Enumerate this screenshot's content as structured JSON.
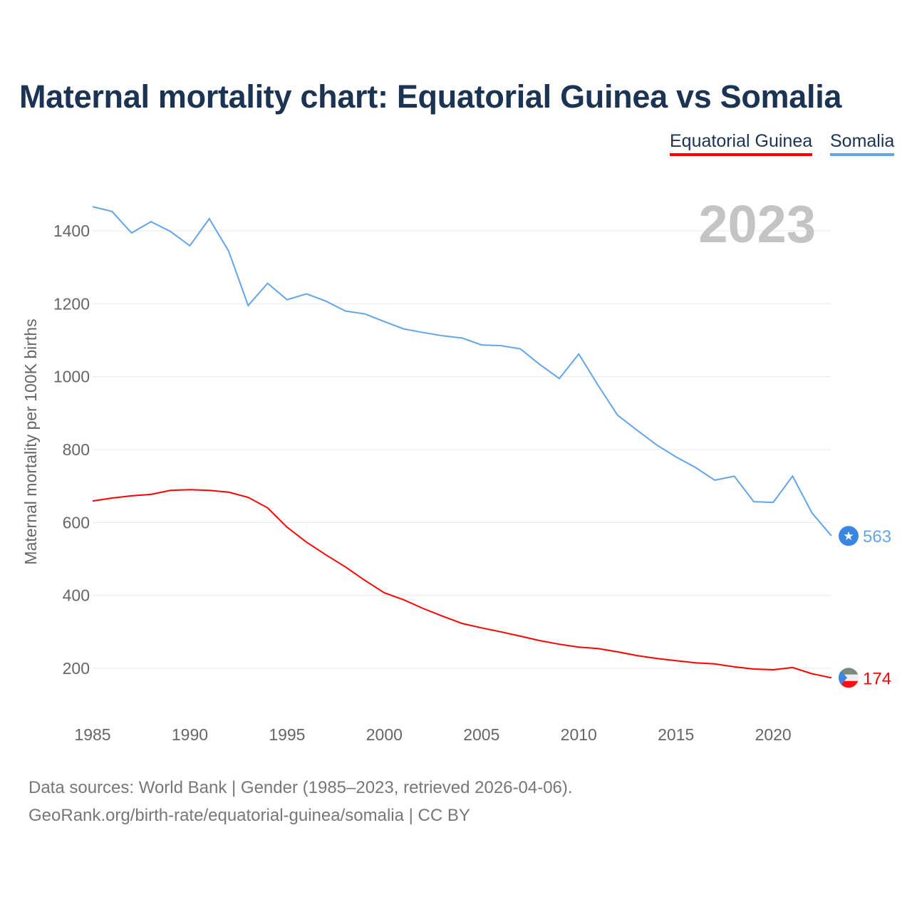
{
  "title": "Maternal mortality chart: Equatorial Guinea vs Somalia",
  "year_label": "2023",
  "footer": {
    "line1": "Data sources: World Bank | Gender (1985–2023, retrieved 2026-04-06).",
    "line2": "GeoRank.org/birth-rate/equatorial-guinea/somalia | CC BY"
  },
  "chart_data": {
    "type": "line",
    "title": "Maternal mortality chart: Equatorial Guinea vs Somalia",
    "xlabel": "",
    "ylabel": "Maternal mortality per 100K births",
    "xlim": [
      1985,
      2023
    ],
    "ylim": [
      100,
      1500
    ],
    "grid": true,
    "legend": "top-right",
    "x_ticks": [
      1985,
      1990,
      1995,
      2000,
      2005,
      2010,
      2015,
      2020
    ],
    "y_ticks": [
      200,
      400,
      600,
      800,
      1000,
      1200,
      1400
    ],
    "x": [
      1985,
      1986,
      1987,
      1988,
      1989,
      1990,
      1991,
      1992,
      1993,
      1994,
      1995,
      1996,
      1997,
      1998,
      1999,
      2000,
      2001,
      2002,
      2003,
      2004,
      2005,
      2006,
      2007,
      2008,
      2009,
      2010,
      2011,
      2012,
      2013,
      2014,
      2015,
      2016,
      2017,
      2018,
      2019,
      2020,
      2021,
      2022,
      2023
    ],
    "series": [
      {
        "name": "Equatorial Guinea",
        "color": "#ff0000",
        "end_label": "174",
        "flag": "equatorial-guinea-flag",
        "values": [
          659,
          667,
          673,
          677,
          688,
          690,
          688,
          683,
          669,
          640,
          587,
          546,
          511,
          478,
          441,
          407,
          388,
          364,
          343,
          323,
          311,
          300,
          288,
          276,
          266,
          258,
          254,
          245,
          235,
          227,
          221,
          215,
          212,
          204,
          198,
          196,
          202,
          185,
          174
        ]
      },
      {
        "name": "Somalia",
        "color": "#63a5ea",
        "end_label": "563",
        "flag": "somalia-flag",
        "values": [
          1466,
          1453,
          1394,
          1425,
          1398,
          1359,
          1433,
          1344,
          1195,
          1256,
          1211,
          1227,
          1207,
          1180,
          1172,
          1151,
          1131,
          1121,
          1112,
          1106,
          1087,
          1085,
          1076,
          1033,
          995,
          1062,
          976,
          894,
          853,
          813,
          780,
          751,
          716,
          727,
          657,
          655,
          727,
          626,
          563
        ]
      }
    ]
  }
}
